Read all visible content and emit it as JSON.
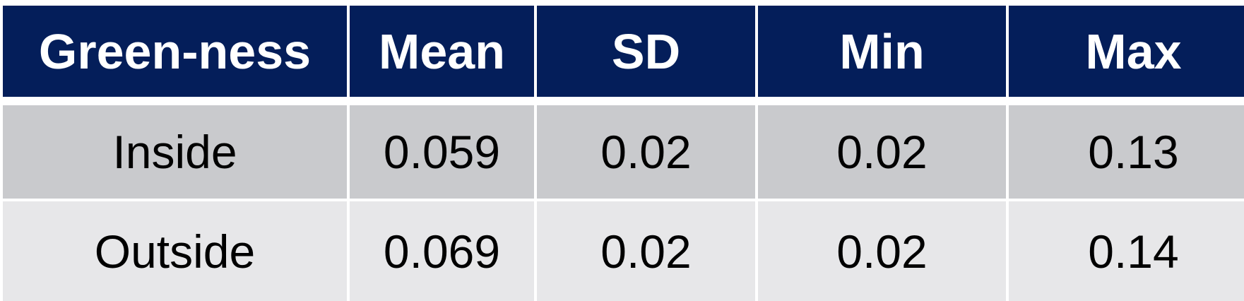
{
  "colors": {
    "header_bg": "#041e5a",
    "header_text": "#ffffff",
    "row_odd_bg": "#c9cacd",
    "row_even_bg": "#e7e7e9",
    "body_text": "#000000"
  },
  "table": {
    "headers": [
      "Green-ness",
      "Mean",
      "SD",
      "Min",
      "Max"
    ],
    "rows": [
      [
        "Inside",
        "0.059",
        "0.02",
        "0.02",
        "0.13"
      ],
      [
        "Outside",
        "0.069",
        "0.02",
        "0.02",
        "0.14"
      ]
    ]
  }
}
